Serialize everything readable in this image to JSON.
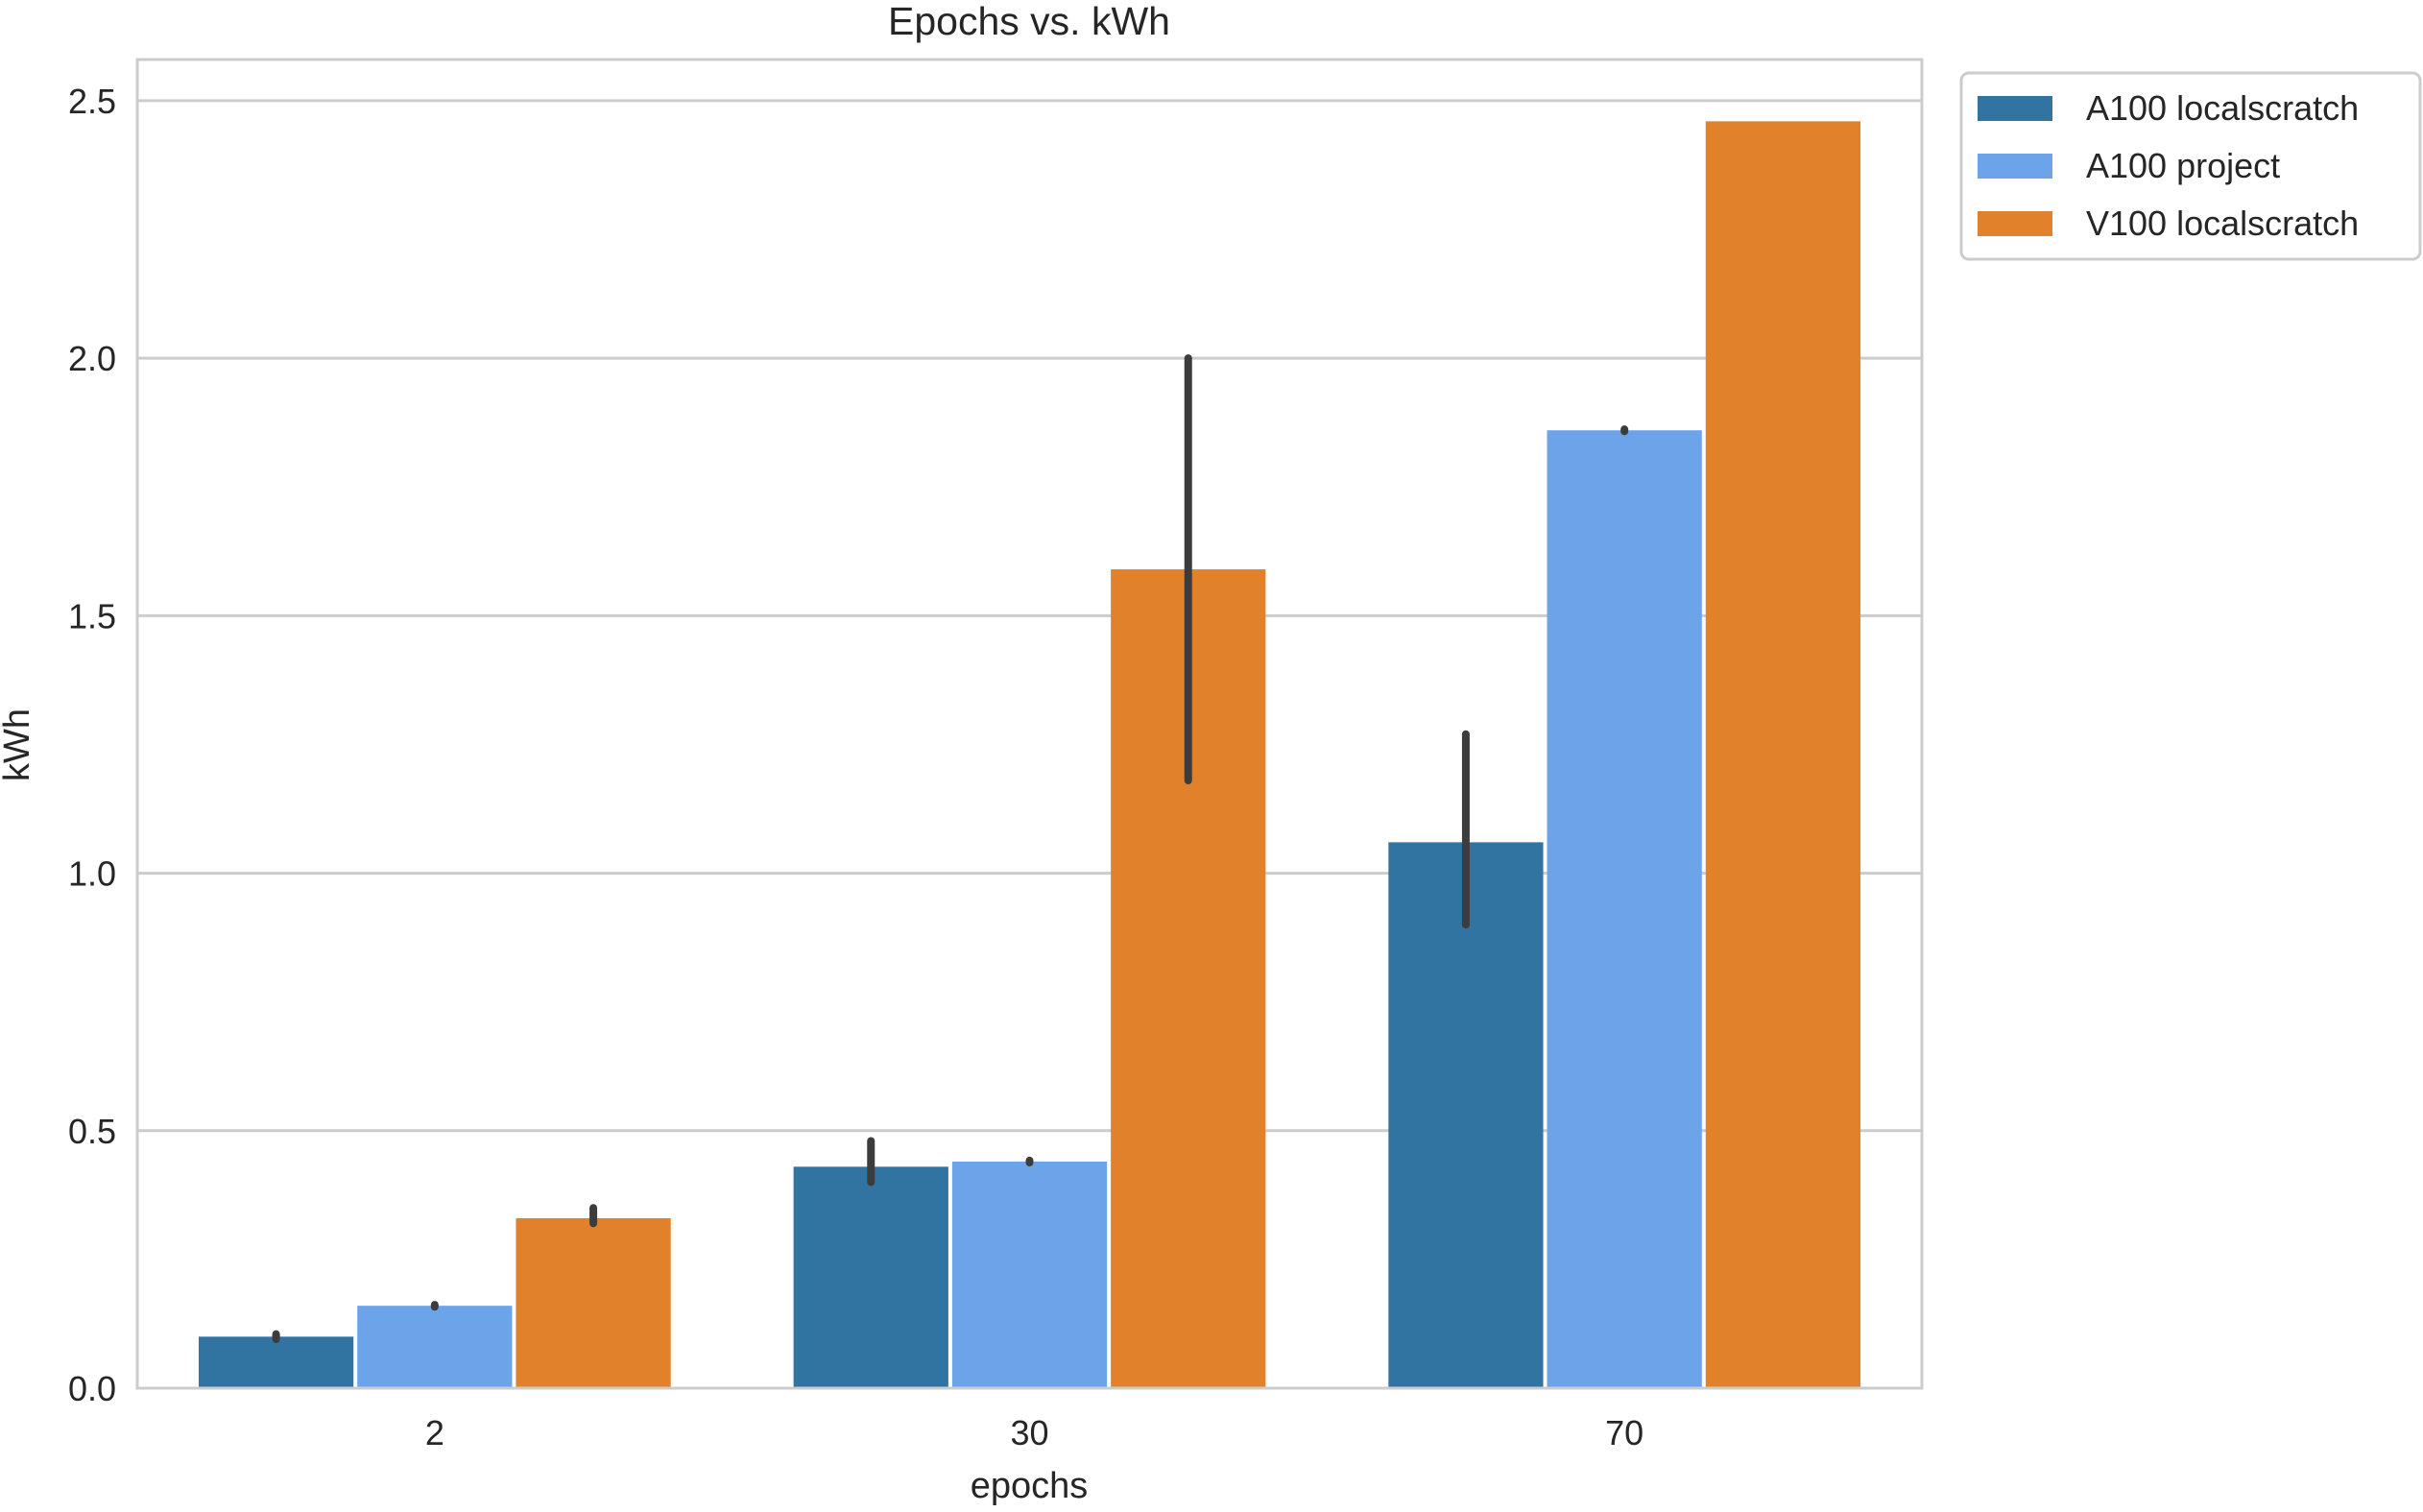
{
  "chart_data": {
    "type": "bar",
    "title": "Epochs vs. kWh",
    "xlabel": "epochs",
    "ylabel": "kWh",
    "categories": [
      "2",
      "30",
      "70"
    ],
    "ylim": [
      0,
      2.58
    ],
    "yticks": [
      0.0,
      0.5,
      1.0,
      1.5,
      2.0,
      2.5
    ],
    "ytick_labels": [
      "0.0",
      "0.5",
      "1.0",
      "1.5",
      "2.0",
      "2.5"
    ],
    "grid": "horizontal",
    "legend_position": "outside-top-right",
    "series": [
      {
        "name": "A100 localscratch",
        "color": "#3274a1",
        "values": [
          0.1,
          0.43,
          1.06
        ],
        "error": [
          [
            0.095,
            0.105
          ],
          [
            0.4,
            0.48
          ],
          [
            0.9,
            1.27
          ]
        ]
      },
      {
        "name": "A100 project",
        "color": "#6ca3e9",
        "values": [
          0.16,
          0.44,
          1.86
        ],
        "error": [
          [
            0.158,
            0.162
          ],
          [
            0.438,
            0.442
          ],
          [
            1.858,
            1.862
          ]
        ]
      },
      {
        "name": "V100 localscratch",
        "color": "#e1812c",
        "values": [
          0.33,
          1.59,
          2.46
        ],
        "error": [
          [
            0.32,
            0.35
          ],
          [
            1.18,
            2.0
          ],
          null
        ]
      }
    ]
  }
}
